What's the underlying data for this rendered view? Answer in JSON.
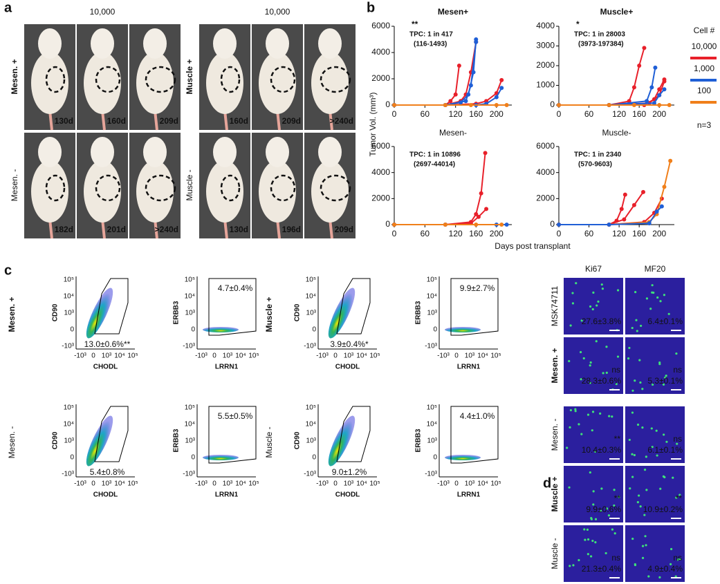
{
  "panel_a": {
    "label": "a",
    "groups": [
      {
        "dose": "10,000",
        "rows": [
          {
            "name": {
              "text": "Mesen. +",
              "color": "#3f2b96"
            },
            "days": [
              "130d",
              "160d",
              "209d"
            ]
          },
          {
            "name": {
              "text": "Mesen. -"
            },
            "days": [
              "182d",
              "201d",
              ">240d"
            ]
          }
        ]
      },
      {
        "dose": "10,000",
        "rows": [
          {
            "name": {
              "text": "Muscle +",
              "color": "#d42027"
            },
            "days": [
              "160d",
              "209d",
              ">240d"
            ]
          },
          {
            "name": {
              "text": "Muscle -"
            },
            "days": [
              "130d",
              "196d",
              "209d"
            ]
          }
        ]
      }
    ]
  },
  "panel_b": {
    "label": "b",
    "ylabel": "Tumor Vol. (mm³)",
    "xlabel": "Days post transplant",
    "legend": {
      "title": "Cell #",
      "entries": [
        {
          "label": "10,000",
          "color": "#e8202a"
        },
        {
          "label": "1,000",
          "color": "#1f5fd6"
        },
        {
          "label": "100",
          "color": "#f07f1a"
        }
      ],
      "note": "n=3"
    }
  },
  "chart_data": [
    {
      "type": "line",
      "title": "Mesen+",
      "title_color": "#3f2b96",
      "significance": "**",
      "tpc": "TPC: 1 in 417",
      "ci": "(116-1493)",
      "xlim": [
        0,
        230
      ],
      "xticks": [
        0,
        60,
        120,
        160,
        200
      ],
      "ylim": [
        0,
        6000
      ],
      "yticks": [
        0,
        2000,
        4000,
        6000
      ],
      "series": [
        {
          "color": "#e8202a",
          "x": [
            0,
            100,
            110,
            120,
            127
          ],
          "values": [
            0,
            0,
            300,
            800,
            3000
          ]
        },
        {
          "color": "#e8202a",
          "x": [
            0,
            100,
            130,
            140,
            150,
            160
          ],
          "values": [
            0,
            0,
            300,
            800,
            2500,
            4800
          ]
        },
        {
          "color": "#e8202a",
          "x": [
            0,
            100,
            160,
            180,
            200,
            210
          ],
          "values": [
            0,
            0,
            100,
            300,
            900,
            1900
          ]
        },
        {
          "color": "#1f5fd6",
          "x": [
            0,
            100,
            130,
            145,
            155,
            160
          ],
          "values": [
            0,
            0,
            200,
            800,
            2500,
            5000
          ]
        },
        {
          "color": "#1f5fd6",
          "x": [
            0,
            100,
            140,
            150,
            160
          ],
          "values": [
            0,
            0,
            300,
            1500,
            4800
          ]
        },
        {
          "color": "#1f5fd6",
          "x": [
            0,
            100,
            160,
            180,
            200,
            210
          ],
          "values": [
            0,
            0,
            0,
            100,
            600,
            1300
          ]
        },
        {
          "color": "#f07f1a",
          "x": [
            0,
            100,
            150,
            200,
            220
          ],
          "values": [
            0,
            0,
            0,
            0,
            0
          ]
        }
      ]
    },
    {
      "type": "line",
      "title": "Muscle+",
      "title_color": "#d42027",
      "significance": "*",
      "tpc": "TPC: 1 in 28003",
      "ci": "(3973-197384)",
      "xlim": [
        0,
        230
      ],
      "xticks": [
        0,
        60,
        120,
        160,
        200
      ],
      "ylim": [
        0,
        4000
      ],
      "yticks": [
        0,
        1000,
        2000,
        3000,
        4000
      ],
      "series": [
        {
          "color": "#e8202a",
          "x": [
            0,
            100,
            140,
            150,
            160,
            170
          ],
          "values": [
            0,
            0,
            200,
            900,
            2000,
            2900
          ]
        },
        {
          "color": "#e8202a",
          "x": [
            0,
            100,
            170,
            190,
            200,
            210
          ],
          "values": [
            0,
            0,
            0,
            300,
            800,
            1300
          ]
        },
        {
          "color": "#e8202a",
          "x": [
            0,
            100,
            180,
            200,
            210
          ],
          "values": [
            0,
            0,
            100,
            500,
            1200
          ]
        },
        {
          "color": "#1f5fd6",
          "x": [
            0,
            100,
            175,
            185,
            192
          ],
          "values": [
            0,
            0,
            200,
            900,
            1900
          ]
        },
        {
          "color": "#1f5fd6",
          "x": [
            0,
            100,
            190,
            200,
            210
          ],
          "values": [
            0,
            0,
            100,
            500,
            800
          ]
        },
        {
          "color": "#f07f1a",
          "x": [
            0,
            100,
            150,
            200,
            220
          ],
          "values": [
            0,
            0,
            0,
            0,
            0
          ]
        }
      ]
    },
    {
      "type": "line",
      "title": "Mesen-",
      "tpc": "TPC: 1 in 10896",
      "ci": "(2697-44014)",
      "xlim": [
        0,
        230
      ],
      "xticks": [
        0,
        60,
        120,
        160,
        200
      ],
      "ylim": [
        0,
        6000
      ],
      "yticks": [
        0,
        2000,
        4000,
        6000
      ],
      "series": [
        {
          "color": "#e8202a",
          "x": [
            0,
            100,
            150,
            160,
            170,
            178
          ],
          "values": [
            0,
            0,
            200,
            800,
            2400,
            5500
          ]
        },
        {
          "color": "#e8202a",
          "x": [
            0,
            100,
            150,
            165,
            180
          ],
          "values": [
            0,
            0,
            100,
            600,
            1200
          ]
        },
        {
          "color": "#1f5fd6",
          "x": [
            0,
            100,
            200,
            220
          ],
          "values": [
            0,
            0,
            0,
            0
          ]
        },
        {
          "color": "#f07f1a",
          "x": [
            0,
            100,
            160,
            210
          ],
          "values": [
            0,
            0,
            0,
            0
          ]
        }
      ]
    },
    {
      "type": "line",
      "title": "Muscle-",
      "tpc": "TPC: 1 in 2340",
      "ci": "(570-9603)",
      "xlim": [
        0,
        230
      ],
      "xticks": [
        0,
        60,
        120,
        160,
        200
      ],
      "ylim": [
        0,
        6000
      ],
      "yticks": [
        0,
        2000,
        4000,
        6000
      ],
      "series": [
        {
          "color": "#e8202a",
          "x": [
            0,
            100,
            115,
            125,
            132
          ],
          "values": [
            0,
            0,
            300,
            1200,
            2300
          ]
        },
        {
          "color": "#e8202a",
          "x": [
            0,
            100,
            130,
            150,
            168
          ],
          "values": [
            0,
            0,
            400,
            1500,
            2500
          ]
        },
        {
          "color": "#e8202a",
          "x": [
            0,
            100,
            170,
            190,
            205
          ],
          "values": [
            0,
            0,
            200,
            900,
            2000
          ]
        },
        {
          "color": "#f07f1a",
          "x": [
            0,
            100,
            180,
            195,
            210,
            222
          ],
          "values": [
            0,
            0,
            200,
            800,
            2900,
            4900
          ]
        },
        {
          "color": "#1f5fd6",
          "x": [
            0,
            100,
            180,
            195,
            205
          ],
          "values": [
            0,
            0,
            100,
            1000,
            1400
          ]
        }
      ]
    }
  ],
  "panel_c": {
    "label": "c",
    "xticks": [
      "-10³",
      "0",
      "10³",
      "10⁴",
      "10⁵"
    ],
    "yticks": [
      "10⁵",
      "10⁴",
      "10³",
      "0",
      "-10³"
    ],
    "row_labels": [
      {
        "text": "Mesen. +",
        "color": "#3f2b96"
      },
      {
        "text": "Muscle +",
        "color": "#d42027"
      },
      {
        "text": "Mesen. -"
      },
      {
        "text": "Muscle -"
      }
    ],
    "plots": [
      {
        "ylabel": "CD90",
        "xlabel": "CHODL",
        "gate": "13.0±0.6%**"
      },
      {
        "ylabel": "ERBB3",
        "xlabel": "LRRN1",
        "gate": "4.7±0.4%"
      },
      {
        "ylabel": "CD90",
        "xlabel": "CHODL",
        "gate": "3.9±0.4%*"
      },
      {
        "ylabel": "ERBB3",
        "xlabel": "LRRN1",
        "gate": "9.9±2.7%"
      },
      {
        "ylabel": "CD90",
        "xlabel": "CHODL",
        "gate": "5.4±0.8%"
      },
      {
        "ylabel": "ERBB3",
        "xlabel": "LRRN1",
        "gate": "5.5±0.5%"
      },
      {
        "ylabel": "CD90",
        "xlabel": "CHODL",
        "gate": "9.0±1.2%"
      },
      {
        "ylabel": "ERBB3",
        "xlabel": "LRRN1",
        "gate": "4.4±1.0%"
      }
    ]
  },
  "panel_d": {
    "label": "d",
    "columns": [
      "Ki67",
      "MF20"
    ],
    "rows": [
      {
        "name": {
          "text": "MSK74711"
        },
        "cells": [
          {
            "value": "27.6±3.8%"
          },
          {
            "value": "6.4±0.1%"
          }
        ]
      },
      {
        "name": {
          "text": "Mesen. +",
          "color": "#3f2b96"
        },
        "cells": [
          {
            "sig": "ns",
            "value": "28.3±0.6%"
          },
          {
            "sig": "ns",
            "value": "5.3±0.1%"
          }
        ]
      },
      {
        "name": {
          "text": "Mesen. -"
        },
        "cells": [
          {
            "sig": "**",
            "value": "10.4±0.3%"
          },
          {
            "sig": "ns",
            "value": "6.1±0.1%"
          }
        ]
      },
      {
        "name": {
          "text": "Muscle +",
          "color": "#d42027"
        },
        "cells": [
          {
            "sig": "**",
            "value": "9.9±0.6%"
          },
          {
            "sig": "**",
            "value": "10.9±0.2%"
          }
        ]
      },
      {
        "name": {
          "text": "Muscle -"
        },
        "cells": [
          {
            "sig": "ns",
            "value": "21.3±0.4%"
          },
          {
            "sig": "ns",
            "value": "4.9±0.4%"
          }
        ]
      }
    ]
  }
}
